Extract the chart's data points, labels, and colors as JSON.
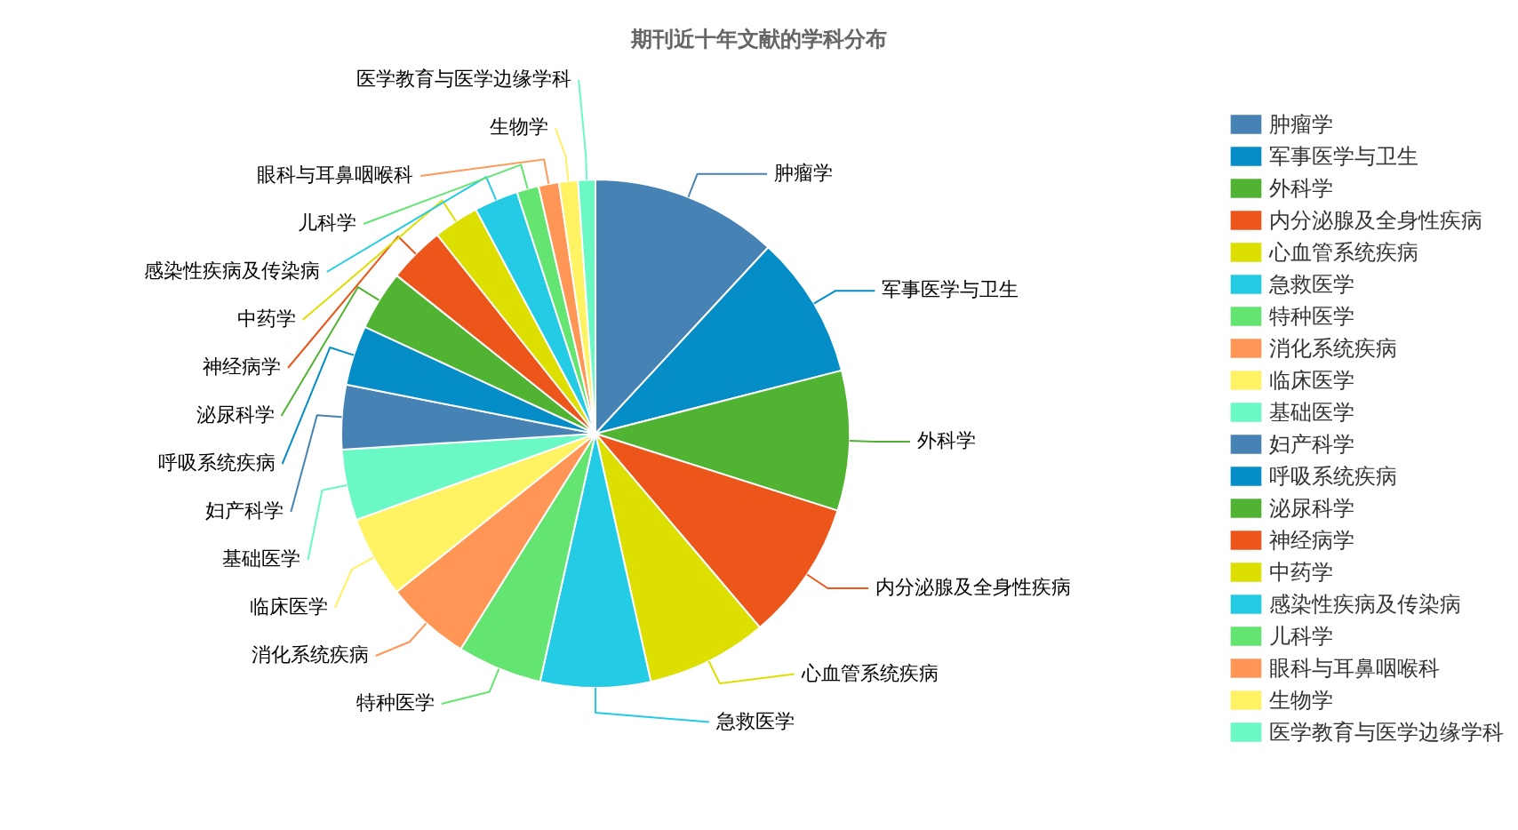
{
  "chart_data": {
    "type": "pie",
    "title": "期刊近十年文献的学科分布",
    "categories": [
      "肿瘤学",
      "军事医学与卫生",
      "外科学",
      "内分泌腺及全身性疾病",
      "心血管系统疾病",
      "急救医学",
      "特种医学",
      "消化系统疾病",
      "临床医学",
      "基础医学",
      "妇产科学",
      "呼吸系统疾病",
      "泌尿科学",
      "神经病学",
      "中药学",
      "感染性疾病及传染病",
      "儿科学",
      "眼科与耳鼻咽喉科",
      "生物学",
      "医学教育与医学边缘学科"
    ],
    "values": [
      11.9,
      9.1,
      8.9,
      8.9,
      7.7,
      7.0,
      5.4,
      5.4,
      5.2,
      4.5,
      4.1,
      3.8,
      3.8,
      3.6,
      2.9,
      2.8,
      1.4,
      1.3,
      1.2,
      1.1
    ],
    "colors": [
      "#4682b4",
      "#058dc7",
      "#50b432",
      "#ed561b",
      "#dddf00",
      "#24cbe5",
      "#64e572",
      "#ff9655",
      "#fff263",
      "#6af9c4",
      "#4682b4",
      "#058dc7",
      "#50b432",
      "#ed561b",
      "#dddf00",
      "#24cbe5",
      "#64e572",
      "#ff9655",
      "#fff263",
      "#6af9c4"
    ],
    "legend": "right"
  }
}
